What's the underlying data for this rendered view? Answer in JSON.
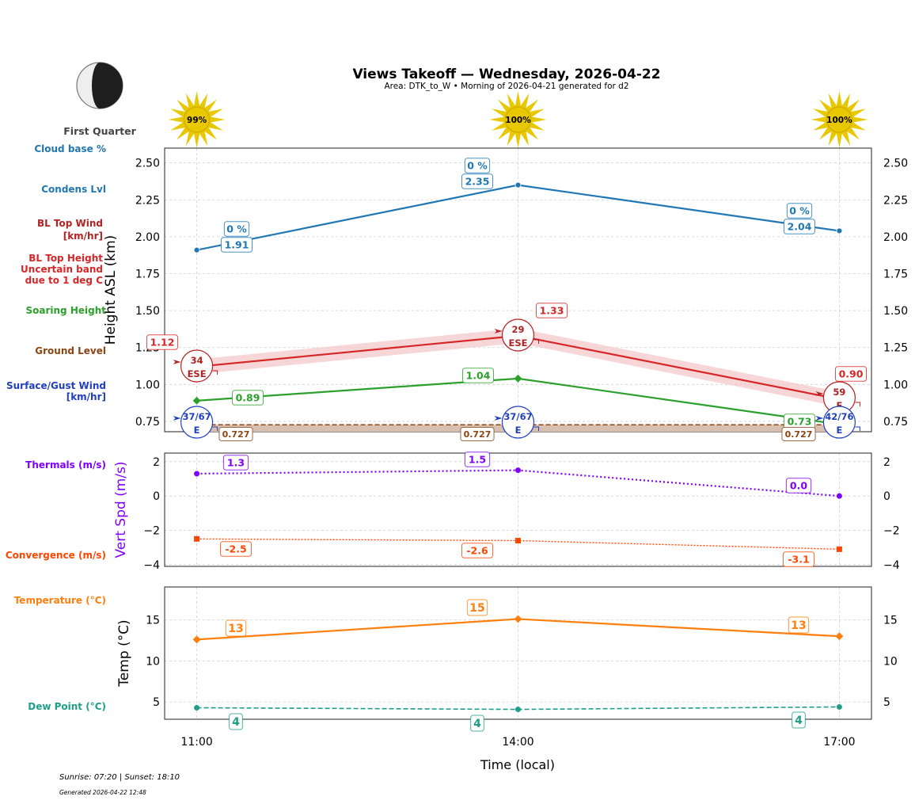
{
  "title": "Views Takeoff — Wednesday, 2026-04-22",
  "subtitle": "Area: DTK_to_W • Morning of 2026-04-21 generated for d2",
  "moon": {
    "phase_label": "First Quarter",
    "icon": "moon-first-quarter-icon"
  },
  "sun_icons": [
    "99%",
    "100%",
    "100%"
  ],
  "footer": {
    "sun_times": "Sunrise: 07:20 | Sunset: 18:10",
    "generated": "Generated 2026-04-22 12:48"
  },
  "side_labels": {
    "cloud_base": "Cloud base %",
    "condens": "Condens Lvl",
    "bl_wind": [
      "BL Top Wind",
      "[km/hr]"
    ],
    "bl_height": [
      "BL Top Height",
      "Uncertain band",
      "due to 1 deg C"
    ],
    "soaring": "Soaring Height",
    "ground": "Ground Level",
    "surface_wind": [
      "Surface/Gust Wind",
      "[km/hr]"
    ],
    "thermals": "Thermals (m/s)",
    "convergence": "Convergence (m/s)",
    "temperature": "Temperature (°C)",
    "dewpoint": "Dew Point (°C)"
  },
  "colors": {
    "cloud": "#1f77b4",
    "bl": "#d62728",
    "bl_band": "#f4c4c6",
    "bl_wind": "#b22222",
    "soaring": "#2ca02c",
    "ground": "#8b4513",
    "ground_fill": "#d9bfb0",
    "surface_wind": "#1f3fbf",
    "thermals": "#7f00ff",
    "convergence": "#ff4500",
    "temperature": "#ff7f0e",
    "dewpoint": "#1f9e89",
    "sun": "#e8c800"
  },
  "chart_data": [
    {
      "type": "line",
      "ylabel": "Height ASL (km)",
      "ylim": [
        0.68,
        2.6
      ],
      "yticks": [
        "0.75",
        "1.00",
        "1.25",
        "1.50",
        "1.75",
        "2.00",
        "2.25",
        "2.50"
      ],
      "x": [
        "11:00",
        "14:00",
        "17:00"
      ],
      "grid": true,
      "series": [
        {
          "key": "condens",
          "values": [
            1.91,
            2.35,
            2.04
          ],
          "labels": [
            "1.91",
            "2.35",
            "2.04"
          ],
          "cloud_pct": [
            "0 %",
            "0 %",
            "0 %"
          ]
        },
        {
          "key": "bl_top",
          "values": [
            1.12,
            1.33,
            0.9
          ],
          "labels": [
            "1.12",
            "1.33",
            "0.90"
          ],
          "band_low": [
            1.07,
            1.28,
            0.85
          ],
          "band_high": [
            1.17,
            1.38,
            0.95
          ]
        },
        {
          "key": "soaring",
          "values": [
            0.89,
            1.04,
            0.73
          ],
          "labels": [
            "0.89",
            "1.04",
            "0.73"
          ]
        },
        {
          "key": "ground",
          "values": [
            0.727,
            0.727,
            0.727
          ],
          "labels": [
            "0.727",
            "0.727",
            "0.727"
          ]
        }
      ],
      "bl_wind": [
        {
          "speed": "34",
          "dir": "ESE"
        },
        {
          "speed": "29",
          "dir": "ESE"
        },
        {
          "speed": "59",
          "dir": "E"
        }
      ],
      "surface_wind": [
        {
          "speed": "37/67",
          "dir": "E"
        },
        {
          "speed": "37/67",
          "dir": "E"
        },
        {
          "speed": "42/76",
          "dir": "E"
        }
      ]
    },
    {
      "type": "line",
      "ylabel": "Vert Spd (m/s)",
      "ylim": [
        -4.1,
        2.5
      ],
      "yticks": [
        "2",
        "0",
        "−2",
        "−4"
      ],
      "ytick_values": [
        2,
        0,
        -2,
        -4
      ],
      "x": [
        "11:00",
        "14:00",
        "17:00"
      ],
      "grid": true,
      "series": [
        {
          "key": "thermals",
          "values": [
            1.3,
            1.5,
            0.0
          ],
          "labels": [
            "1.3",
            "1.5",
            "0.0"
          ]
        },
        {
          "key": "convergence",
          "values": [
            -2.5,
            -2.6,
            -3.1
          ],
          "labels": [
            "-2.5",
            "-2.6",
            "-3.1"
          ]
        }
      ]
    },
    {
      "type": "line",
      "ylabel": "Temp (°C)",
      "xlabel": "Time (local)",
      "ylim": [
        2.9,
        19
      ],
      "yticks": [
        "15",
        "10",
        "5"
      ],
      "ytick_values": [
        15,
        10,
        5
      ],
      "x": [
        "11:00",
        "14:00",
        "17:00"
      ],
      "grid": true,
      "series": [
        {
          "key": "temperature",
          "values": [
            12.6,
            15.1,
            13.0
          ],
          "labels": [
            "13",
            "15",
            "13"
          ]
        },
        {
          "key": "dewpoint",
          "values": [
            4.3,
            4.1,
            4.4
          ],
          "labels": [
            "4",
            "4",
            "4"
          ]
        }
      ]
    }
  ]
}
